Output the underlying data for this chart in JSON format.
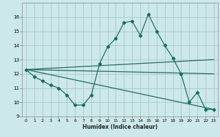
{
  "title": "",
  "xlabel": "Humidex (Indice chaleur)",
  "background_color": "#cce8e8",
  "grid_color": "#aacccc",
  "line_color": "#1a6b5a",
  "xlim": [
    -0.5,
    23.5
  ],
  "ylim": [
    9,
    17
  ],
  "yticks": [
    9,
    10,
    11,
    12,
    13,
    14,
    15,
    16
  ],
  "xticks": [
    0,
    1,
    2,
    3,
    4,
    5,
    6,
    7,
    8,
    9,
    10,
    11,
    12,
    13,
    14,
    15,
    16,
    17,
    18,
    19,
    20,
    21,
    22,
    23
  ],
  "line1_x": [
    0,
    1,
    2,
    3,
    4,
    5,
    6,
    7,
    8,
    9,
    10,
    11,
    12,
    13,
    14,
    15,
    16,
    17,
    18,
    19,
    20,
    21,
    22,
    23
  ],
  "line1_y": [
    12.3,
    11.8,
    11.5,
    11.2,
    11.0,
    10.5,
    9.8,
    9.8,
    10.5,
    12.7,
    13.9,
    14.5,
    15.6,
    15.7,
    14.7,
    16.2,
    15.0,
    14.0,
    13.1,
    12.0,
    10.0,
    10.7,
    9.5,
    9.5
  ],
  "line2_x": [
    0,
    23
  ],
  "line2_y": [
    12.3,
    12.0
  ],
  "line3_x": [
    0,
    23
  ],
  "line3_y": [
    12.3,
    13.0
  ],
  "line4_x": [
    0,
    23
  ],
  "line4_y": [
    12.3,
    9.5
  ]
}
